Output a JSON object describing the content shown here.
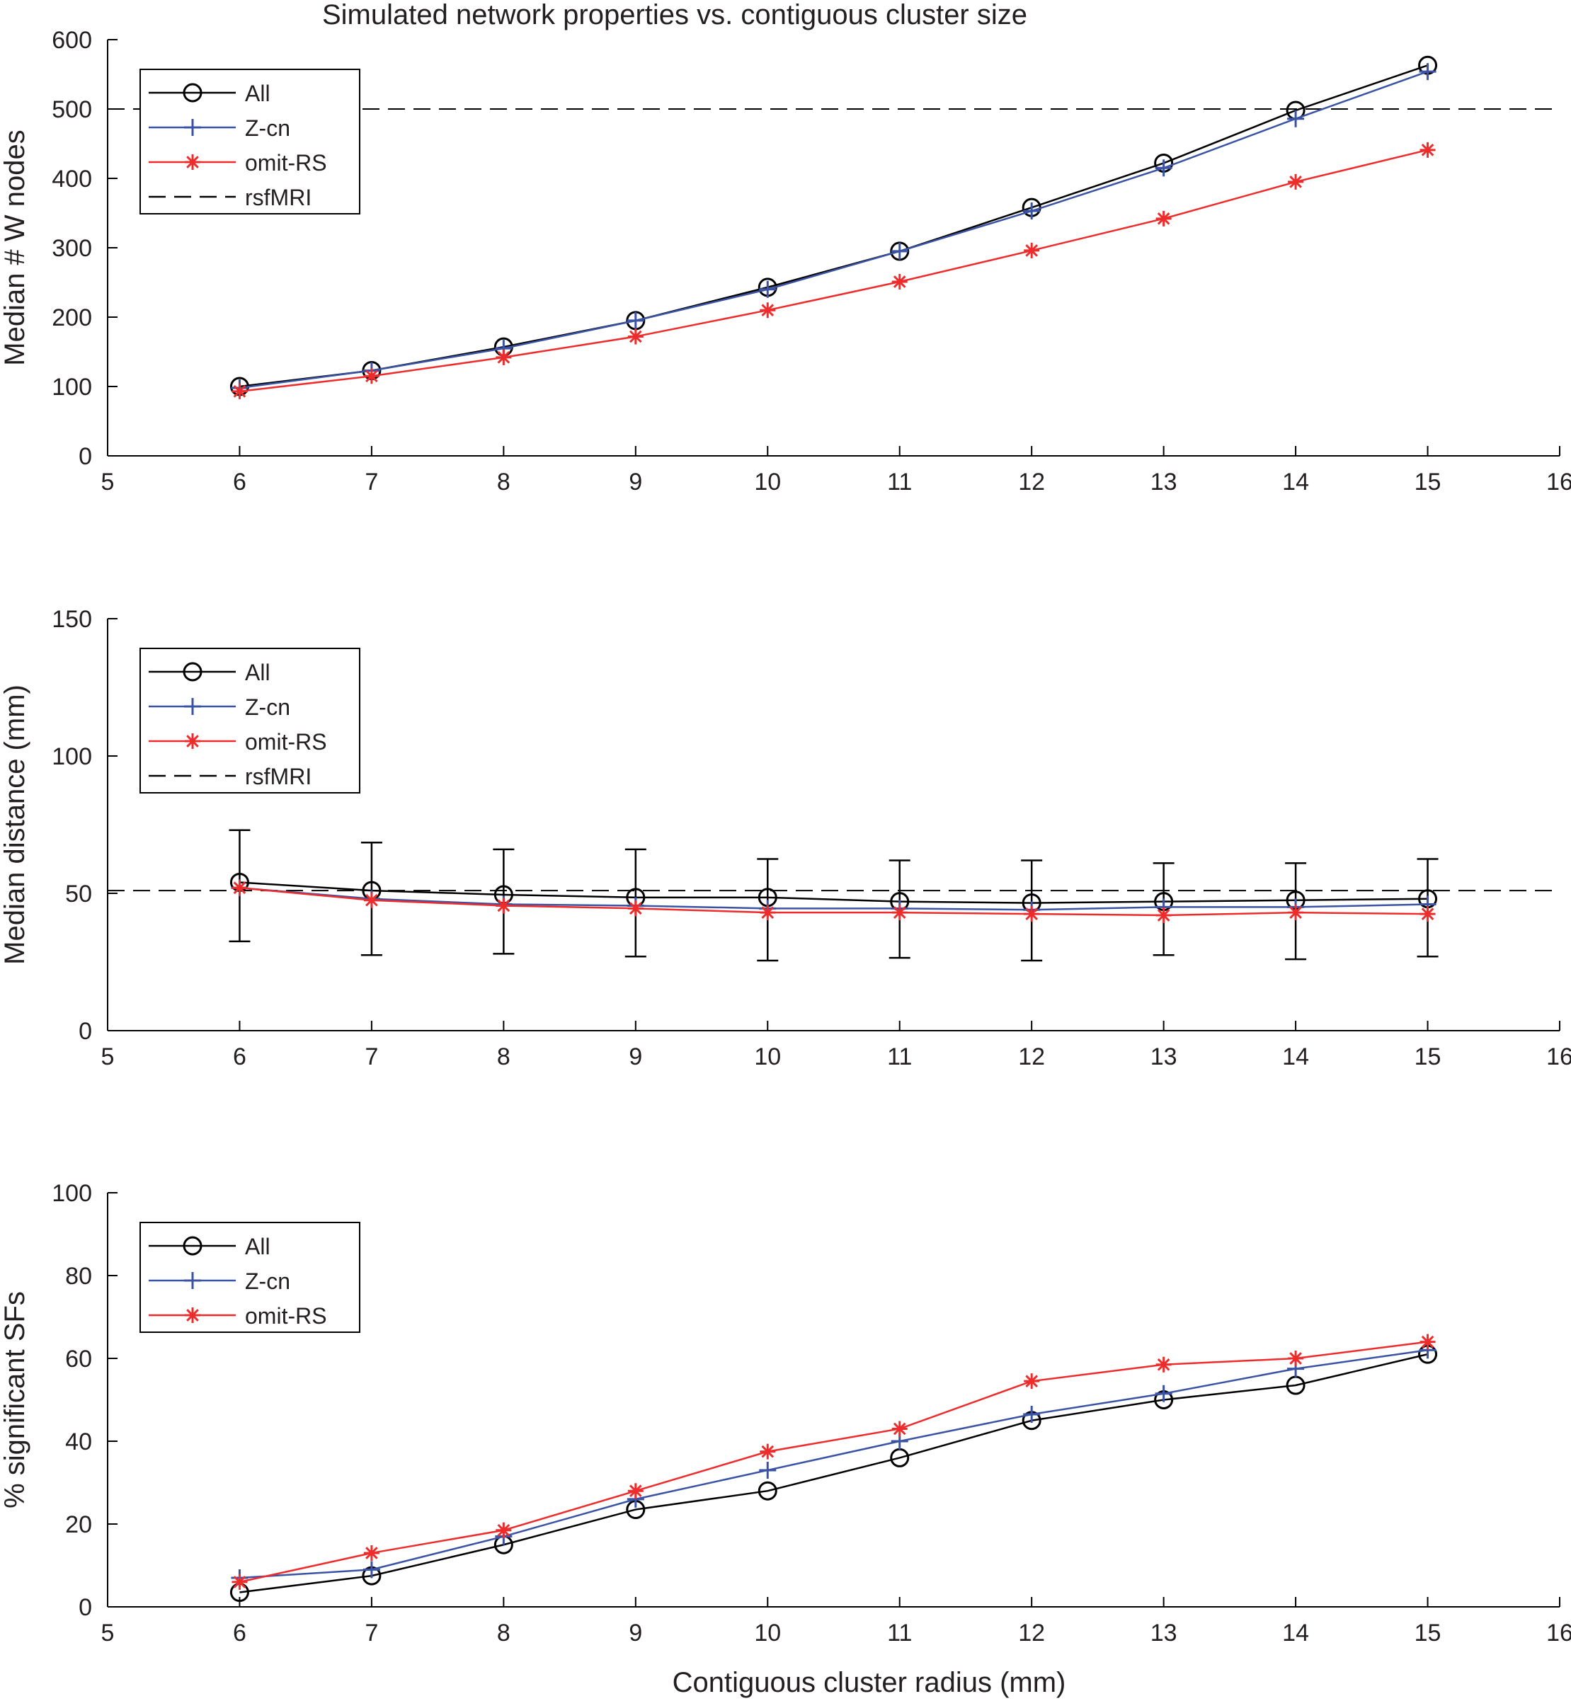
{
  "figure_title": "Simulated network properties vs. contiguous cluster size",
  "series_styles": {
    "All": {
      "color": "#000000",
      "marker": "circle"
    },
    "Z-cn": {
      "color": "#3a53a4",
      "marker": "plus"
    },
    "omit-RS": {
      "color": "#ee2c2c",
      "marker": "asterisk"
    },
    "rsfMRI": {
      "color": "#000000",
      "marker": "none",
      "dash": "dashed"
    }
  },
  "chart_data": [
    {
      "type": "line",
      "title": "Simulated network properties vs. contiguous cluster size",
      "xlabel": "",
      "ylabel": "Median # W nodes",
      "xlim": [
        5,
        16
      ],
      "ylim": [
        0,
        600
      ],
      "xticks": [
        "5",
        "6",
        "7",
        "8",
        "9",
        "10",
        "11",
        "12",
        "13",
        "14",
        "15",
        "16"
      ],
      "yticks": [
        "0",
        "100",
        "200",
        "300",
        "400",
        "500",
        "600"
      ],
      "x": [
        6,
        7,
        8,
        9,
        10,
        11,
        12,
        13,
        14,
        15
      ],
      "series": [
        {
          "name": "All",
          "values": [
            100,
            123,
            157,
            195,
            243,
            295,
            358,
            422,
            498,
            563
          ]
        },
        {
          "name": "Z-cn",
          "values": [
            98,
            123,
            155,
            195,
            240,
            295,
            353,
            415,
            486,
            554
          ]
        },
        {
          "name": "omit-RS",
          "values": [
            93,
            115,
            142,
            172,
            210,
            251,
            296,
            342,
            395,
            441
          ]
        }
      ],
      "reference_line": {
        "name": "rsfMRI",
        "value": 500
      },
      "legend": [
        "All",
        "Z-cn",
        "omit-RS",
        "rsfMRI"
      ],
      "legend_position": "top-left"
    },
    {
      "type": "line",
      "title": "",
      "xlabel": "",
      "ylabel": "Median distance (mm)",
      "xlim": [
        5,
        16
      ],
      "ylim": [
        0,
        150
      ],
      "xticks": [
        "5",
        "6",
        "7",
        "8",
        "9",
        "10",
        "11",
        "12",
        "13",
        "14",
        "15",
        "16"
      ],
      "yticks": [
        "0",
        "50",
        "100",
        "150"
      ],
      "x": [
        6,
        7,
        8,
        9,
        10,
        11,
        12,
        13,
        14,
        15
      ],
      "series": [
        {
          "name": "All",
          "values": [
            54,
            51,
            49.5,
            48.5,
            48.5,
            47,
            46.5,
            47,
            47.5,
            48
          ]
        },
        {
          "name": "Z-cn",
          "values": [
            52,
            48,
            46,
            45.5,
            44.5,
            44.5,
            44,
            45,
            45,
            46
          ]
        },
        {
          "name": "omit-RS",
          "values": [
            52,
            47.5,
            45.5,
            44.5,
            43,
            43,
            42.5,
            42,
            43,
            42.5
          ]
        }
      ],
      "error_bars": {
        "series": "All",
        "lower": [
          32.5,
          27.5,
          28,
          27,
          25.5,
          26.5,
          25.5,
          27.5,
          26,
          27
        ],
        "upper": [
          73,
          68.5,
          66,
          66,
          62.5,
          62,
          62,
          61,
          61,
          62.5
        ]
      },
      "reference_line": {
        "name": "rsfMRI",
        "value": 51
      },
      "legend": [
        "All",
        "Z-cn",
        "omit-RS",
        "rsfMRI"
      ],
      "legend_position": "top-left"
    },
    {
      "type": "line",
      "title": "",
      "xlabel": "Contiguous cluster radius (mm)",
      "ylabel": "% significant SFs",
      "xlim": [
        5,
        16
      ],
      "ylim": [
        0,
        100
      ],
      "xticks": [
        "5",
        "6",
        "7",
        "8",
        "9",
        "10",
        "11",
        "12",
        "13",
        "14",
        "15",
        "16"
      ],
      "yticks": [
        "0",
        "20",
        "40",
        "60",
        "80",
        "100"
      ],
      "x": [
        6,
        7,
        8,
        9,
        10,
        11,
        12,
        13,
        14,
        15
      ],
      "series": [
        {
          "name": "All",
          "values": [
            3.5,
            7.5,
            15,
            23.5,
            28,
            36,
            45,
            50,
            53.5,
            61
          ]
        },
        {
          "name": "Z-cn",
          "values": [
            7,
            9,
            17,
            26,
            33,
            40,
            46.5,
            51.5,
            57.5,
            62
          ]
        },
        {
          "name": "omit-RS",
          "values": [
            6,
            13,
            18.5,
            28,
            37.5,
            43,
            54.5,
            58.5,
            60,
            64
          ]
        }
      ],
      "legend": [
        "All",
        "Z-cn",
        "omit-RS"
      ],
      "legend_position": "top-left"
    }
  ]
}
